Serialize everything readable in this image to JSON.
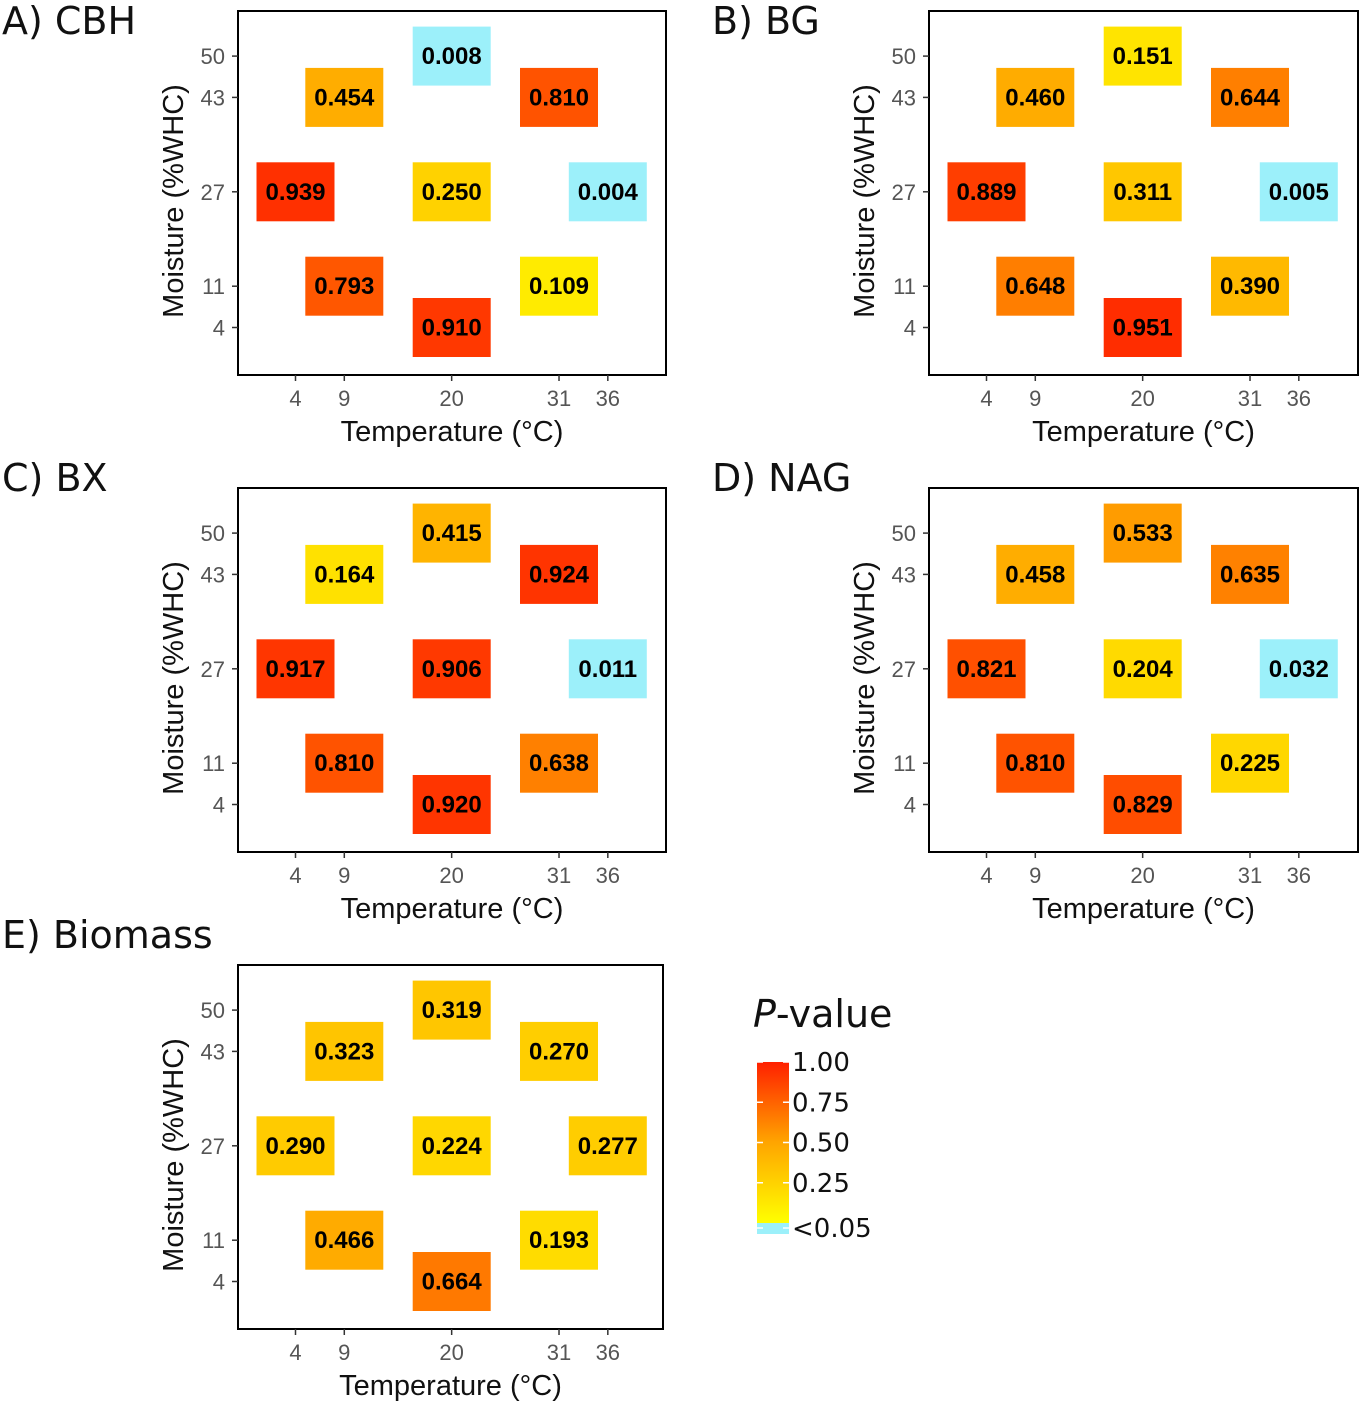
{
  "chart_data": [
    {
      "type": "heatmap",
      "panel_label": "A) CBH",
      "xlabel": "Temperature (°C)",
      "ylabel": "Moisture (%WHC)",
      "x_ticks": [
        4,
        9,
        20,
        31,
        36
      ],
      "y_ticks": [
        4,
        11,
        27,
        43,
        50
      ],
      "cells": [
        {
          "temperature": 20,
          "moisture": 50,
          "p_value": "0.008",
          "value": 0.008
        },
        {
          "temperature": 9,
          "moisture": 43,
          "p_value": "0.454",
          "value": 0.454
        },
        {
          "temperature": 31,
          "moisture": 43,
          "p_value": "0.810",
          "value": 0.81
        },
        {
          "temperature": 4,
          "moisture": 27,
          "p_value": "0.939",
          "value": 0.939
        },
        {
          "temperature": 20,
          "moisture": 27,
          "p_value": "0.250",
          "value": 0.25
        },
        {
          "temperature": 36,
          "moisture": 27,
          "p_value": "0.004",
          "value": 0.004
        },
        {
          "temperature": 9,
          "moisture": 11,
          "p_value": "0.793",
          "value": 0.793
        },
        {
          "temperature": 31,
          "moisture": 11,
          "p_value": "0.109",
          "value": 0.109
        },
        {
          "temperature": 20,
          "moisture": 4,
          "p_value": "0.910",
          "value": 0.91
        }
      ]
    },
    {
      "type": "heatmap",
      "panel_label": "B) BG",
      "xlabel": "Temperature (°C)",
      "ylabel": "Moisture (%WHC)",
      "x_ticks": [
        4,
        9,
        20,
        31,
        36
      ],
      "y_ticks": [
        4,
        11,
        27,
        43,
        50
      ],
      "cells": [
        {
          "temperature": 20,
          "moisture": 50,
          "p_value": "0.151",
          "value": 0.151
        },
        {
          "temperature": 9,
          "moisture": 43,
          "p_value": "0.460",
          "value": 0.46
        },
        {
          "temperature": 31,
          "moisture": 43,
          "p_value": "0.644",
          "value": 0.644
        },
        {
          "temperature": 4,
          "moisture": 27,
          "p_value": "0.889",
          "value": 0.889
        },
        {
          "temperature": 20,
          "moisture": 27,
          "p_value": "0.311",
          "value": 0.311
        },
        {
          "temperature": 36,
          "moisture": 27,
          "p_value": "0.005",
          "value": 0.005
        },
        {
          "temperature": 9,
          "moisture": 11,
          "p_value": "0.648",
          "value": 0.648
        },
        {
          "temperature": 31,
          "moisture": 11,
          "p_value": "0.390",
          "value": 0.39
        },
        {
          "temperature": 20,
          "moisture": 4,
          "p_value": "0.951",
          "value": 0.951
        }
      ]
    },
    {
      "type": "heatmap",
      "panel_label": "C) BX",
      "xlabel": "Temperature (°C)",
      "ylabel": "Moisture (%WHC)",
      "x_ticks": [
        4,
        9,
        20,
        31,
        36
      ],
      "y_ticks": [
        4,
        11,
        27,
        43,
        50
      ],
      "cells": [
        {
          "temperature": 20,
          "moisture": 50,
          "p_value": "0.415",
          "value": 0.415
        },
        {
          "temperature": 9,
          "moisture": 43,
          "p_value": "0.164",
          "value": 0.164
        },
        {
          "temperature": 31,
          "moisture": 43,
          "p_value": "0.924",
          "value": 0.924
        },
        {
          "temperature": 4,
          "moisture": 27,
          "p_value": "0.917",
          "value": 0.917
        },
        {
          "temperature": 20,
          "moisture": 27,
          "p_value": "0.906",
          "value": 0.906
        },
        {
          "temperature": 36,
          "moisture": 27,
          "p_value": "0.011",
          "value": 0.011
        },
        {
          "temperature": 9,
          "moisture": 11,
          "p_value": "0.810",
          "value": 0.81
        },
        {
          "temperature": 31,
          "moisture": 11,
          "p_value": "0.638",
          "value": 0.638
        },
        {
          "temperature": 20,
          "moisture": 4,
          "p_value": "0.920",
          "value": 0.92
        }
      ]
    },
    {
      "type": "heatmap",
      "panel_label": "D) NAG",
      "xlabel": "Temperature (°C)",
      "ylabel": "Moisture (%WHC)",
      "x_ticks": [
        4,
        9,
        20,
        31,
        36
      ],
      "y_ticks": [
        4,
        11,
        27,
        43,
        50
      ],
      "cells": [
        {
          "temperature": 20,
          "moisture": 50,
          "p_value": "0.533",
          "value": 0.533
        },
        {
          "temperature": 9,
          "moisture": 43,
          "p_value": "0.458",
          "value": 0.458
        },
        {
          "temperature": 31,
          "moisture": 43,
          "p_value": "0.635",
          "value": 0.635
        },
        {
          "temperature": 4,
          "moisture": 27,
          "p_value": "0.821",
          "value": 0.821
        },
        {
          "temperature": 20,
          "moisture": 27,
          "p_value": "0.204",
          "value": 0.204
        },
        {
          "temperature": 36,
          "moisture": 27,
          "p_value": "0.032",
          "value": 0.032
        },
        {
          "temperature": 9,
          "moisture": 11,
          "p_value": "0.810",
          "value": 0.81
        },
        {
          "temperature": 31,
          "moisture": 11,
          "p_value": "0.225",
          "value": 0.225
        },
        {
          "temperature": 20,
          "moisture": 4,
          "p_value": "0.829",
          "value": 0.829
        }
      ]
    },
    {
      "type": "heatmap",
      "panel_label": "E) Biomass",
      "xlabel": "Temperature (°C)",
      "ylabel": "Moisture (%WHC)",
      "x_ticks": [
        4,
        9,
        20,
        31,
        36
      ],
      "y_ticks": [
        4,
        11,
        27,
        43,
        50
      ],
      "cells": [
        {
          "temperature": 20,
          "moisture": 50,
          "p_value": "0.319",
          "value": 0.319
        },
        {
          "temperature": 9,
          "moisture": 43,
          "p_value": "0.323",
          "value": 0.323
        },
        {
          "temperature": 31,
          "moisture": 43,
          "p_value": "0.270",
          "value": 0.27
        },
        {
          "temperature": 4,
          "moisture": 27,
          "p_value": "0.290",
          "value": 0.29
        },
        {
          "temperature": 20,
          "moisture": 27,
          "p_value": "0.224",
          "value": 0.224
        },
        {
          "temperature": 36,
          "moisture": 27,
          "p_value": "0.277",
          "value": 0.277
        },
        {
          "temperature": 9,
          "moisture": 11,
          "p_value": "0.466",
          "value": 0.466
        },
        {
          "temperature": 31,
          "moisture": 11,
          "p_value": "0.193",
          "value": 0.193
        },
        {
          "temperature": 20,
          "moisture": 4,
          "p_value": "0.664",
          "value": 0.664
        }
      ]
    }
  ],
  "legend": {
    "title_italic": "P",
    "title_rest": "-value",
    "range": [
      0,
      1
    ],
    "labels": [
      "1.00",
      "0.75",
      "0.50",
      "0.25",
      "<0.05"
    ],
    "label_values": [
      1.0,
      0.75,
      0.5,
      0.25,
      0.0
    ]
  },
  "colors": {
    "significant": "#9CF0FA",
    "scale_low": "#FFFF00",
    "scale_mid": "#FFA500",
    "scale_high": "#FF2000",
    "frame": "#000000"
  },
  "significance_threshold": 0.05
}
